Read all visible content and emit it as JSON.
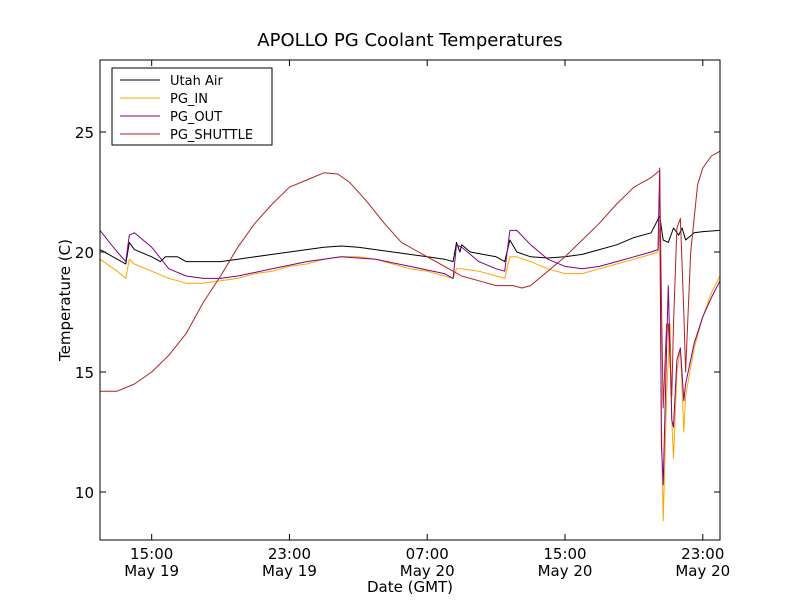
{
  "chart_data": {
    "type": "line",
    "title": "APOLLO PG Coolant Temperatures",
    "xlabel": "Date (GMT)",
    "ylabel": "Temperature (C)",
    "x_unit": "hours since May 19 12:00 GMT",
    "xlim": [
      0,
      36
    ],
    "ylim": [
      8,
      28
    ],
    "yticks": [
      10,
      15,
      20,
      25
    ],
    "ytick_labels": [
      "10",
      "15",
      "20",
      "25"
    ],
    "xticks": [
      {
        "x": 3,
        "time": "15:00",
        "date": "May 19"
      },
      {
        "x": 11,
        "time": "23:00",
        "date": "May 19"
      },
      {
        "x": 19,
        "time": "07:00",
        "date": "May 20"
      },
      {
        "x": 27,
        "time": "15:00",
        "date": "May 20"
      },
      {
        "x": 35,
        "time": "23:00",
        "date": "May 20"
      }
    ],
    "legend_position": "top-left",
    "series": [
      {
        "name": "Utah Air",
        "color": "#000000",
        "points": [
          [
            0,
            20.1
          ],
          [
            1,
            19.7
          ],
          [
            1.5,
            19.5
          ],
          [
            1.7,
            20.4
          ],
          [
            2,
            20.1
          ],
          [
            3,
            19.8
          ],
          [
            3.5,
            19.6
          ],
          [
            3.8,
            19.8
          ],
          [
            4.5,
            19.8
          ],
          [
            5,
            19.6
          ],
          [
            5.5,
            19.6
          ],
          [
            7,
            19.6
          ],
          [
            8,
            19.7
          ],
          [
            10,
            19.9
          ],
          [
            12,
            20.1
          ],
          [
            13,
            20.2
          ],
          [
            14,
            20.25
          ],
          [
            15,
            20.2
          ],
          [
            16,
            20.1
          ],
          [
            17,
            20.0
          ],
          [
            18,
            19.9
          ],
          [
            19,
            19.8
          ],
          [
            20,
            19.7
          ],
          [
            20.5,
            19.6
          ],
          [
            20.7,
            20.4
          ],
          [
            20.9,
            20.0
          ],
          [
            21,
            20.3
          ],
          [
            21.5,
            20.0
          ],
          [
            23,
            19.8
          ],
          [
            23.5,
            19.6
          ],
          [
            23.8,
            20.5
          ],
          [
            24.2,
            20.0
          ],
          [
            25,
            19.8
          ],
          [
            26,
            19.75
          ],
          [
            27,
            19.8
          ],
          [
            28,
            19.9
          ],
          [
            29,
            20.1
          ],
          [
            30,
            20.3
          ],
          [
            31,
            20.6
          ],
          [
            32,
            20.8
          ],
          [
            32.5,
            21.5
          ],
          [
            32.7,
            20.5
          ],
          [
            33.0,
            20.4
          ],
          [
            33.3,
            21.0
          ],
          [
            33.6,
            20.7
          ],
          [
            33.8,
            21.0
          ],
          [
            34,
            20.5
          ],
          [
            34.5,
            20.8
          ],
          [
            35,
            20.85
          ],
          [
            36,
            20.9
          ]
        ]
      },
      {
        "name": "PG_IN",
        "color": "#FFA500",
        "points": [
          [
            0,
            19.7
          ],
          [
            1,
            19.2
          ],
          [
            1.5,
            18.9
          ],
          [
            1.7,
            19.7
          ],
          [
            2,
            19.5
          ],
          [
            3,
            19.2
          ],
          [
            4,
            18.9
          ],
          [
            5,
            18.7
          ],
          [
            6,
            18.7
          ],
          [
            7,
            18.8
          ],
          [
            8,
            18.9
          ],
          [
            9,
            19.1
          ],
          [
            10,
            19.2
          ],
          [
            11,
            19.4
          ],
          [
            12,
            19.5
          ],
          [
            13,
            19.7
          ],
          [
            14,
            19.8
          ],
          [
            15,
            19.8
          ],
          [
            16,
            19.7
          ],
          [
            17,
            19.5
          ],
          [
            18,
            19.3
          ],
          [
            19,
            19.2
          ],
          [
            20,
            19.0
          ],
          [
            20.5,
            18.9
          ],
          [
            20.7,
            19.3
          ],
          [
            21,
            19.3
          ],
          [
            22,
            19.2
          ],
          [
            23,
            19.0
          ],
          [
            23.5,
            18.9
          ],
          [
            23.8,
            19.8
          ],
          [
            24.2,
            19.8
          ],
          [
            25,
            19.6
          ],
          [
            26,
            19.3
          ],
          [
            27,
            19.1
          ],
          [
            28,
            19.1
          ],
          [
            29,
            19.3
          ],
          [
            30,
            19.5
          ],
          [
            31,
            19.7
          ],
          [
            32,
            19.9
          ],
          [
            32.4,
            20.0
          ],
          [
            32.5,
            21.0
          ],
          [
            32.6,
            13.0
          ],
          [
            32.7,
            8.8
          ],
          [
            32.9,
            14.0
          ],
          [
            33.1,
            17.0
          ],
          [
            33.2,
            13.0
          ],
          [
            33.3,
            11.4
          ],
          [
            33.5,
            15.0
          ],
          [
            33.7,
            16.0
          ],
          [
            33.9,
            12.5
          ],
          [
            34.0,
            14.0
          ],
          [
            34.5,
            16.0
          ],
          [
            35,
            17.3
          ],
          [
            35.5,
            18.3
          ],
          [
            36,
            19.0
          ]
        ]
      },
      {
        "name": "PG_OUT",
        "color": "#800080",
        "points": [
          [
            0,
            20.9
          ],
          [
            1,
            20.0
          ],
          [
            1.5,
            19.6
          ],
          [
            1.7,
            20.7
          ],
          [
            2,
            20.8
          ],
          [
            3,
            20.2
          ],
          [
            4,
            19.3
          ],
          [
            5,
            19.0
          ],
          [
            6,
            18.9
          ],
          [
            7,
            18.9
          ],
          [
            8,
            19.0
          ],
          [
            10,
            19.3
          ],
          [
            12,
            19.6
          ],
          [
            14,
            19.8
          ],
          [
            16,
            19.7
          ],
          [
            18,
            19.4
          ],
          [
            20,
            19.1
          ],
          [
            20.5,
            18.9
          ],
          [
            20.7,
            20.3
          ],
          [
            21,
            20.2
          ],
          [
            22,
            19.6
          ],
          [
            23,
            19.3
          ],
          [
            23.5,
            19.2
          ],
          [
            23.8,
            20.9
          ],
          [
            24.2,
            20.9
          ],
          [
            25,
            20.3
          ],
          [
            26,
            19.7
          ],
          [
            27,
            19.4
          ],
          [
            28,
            19.3
          ],
          [
            29,
            19.4
          ],
          [
            30,
            19.6
          ],
          [
            31,
            19.8
          ],
          [
            32,
            20.0
          ],
          [
            32.4,
            20.1
          ],
          [
            32.5,
            23.5
          ],
          [
            32.6,
            12.0
          ],
          [
            32.7,
            10.3
          ],
          [
            32.9,
            16.0
          ],
          [
            33.0,
            18.6
          ],
          [
            33.2,
            13.0
          ],
          [
            33.3,
            12.7
          ],
          [
            33.5,
            15.5
          ],
          [
            33.7,
            16.0
          ],
          [
            33.9,
            13.8
          ],
          [
            34.0,
            14.5
          ],
          [
            34.5,
            16.2
          ],
          [
            35,
            17.3
          ],
          [
            35.5,
            18.1
          ],
          [
            36,
            18.8
          ]
        ]
      },
      {
        "name": "PG_SHUTTLE",
        "color": "#B22222",
        "points": [
          [
            0,
            14.2
          ],
          [
            1,
            14.2
          ],
          [
            2,
            14.5
          ],
          [
            3,
            15.0
          ],
          [
            4,
            15.7
          ],
          [
            5,
            16.6
          ],
          [
            6,
            17.9
          ],
          [
            7,
            19.0
          ],
          [
            8,
            20.2
          ],
          [
            9,
            21.2
          ],
          [
            10,
            22.0
          ],
          [
            11,
            22.7
          ],
          [
            12,
            23.0
          ],
          [
            13,
            23.3
          ],
          [
            13.8,
            23.25
          ],
          [
            14.5,
            22.9
          ],
          [
            15.5,
            22.1
          ],
          [
            16.5,
            21.2
          ],
          [
            17.5,
            20.4
          ],
          [
            18.5,
            20.0
          ],
          [
            19.5,
            19.6
          ],
          [
            20.5,
            19.2
          ],
          [
            21,
            19.0
          ],
          [
            22,
            18.8
          ],
          [
            23,
            18.6
          ],
          [
            24,
            18.6
          ],
          [
            24.5,
            18.5
          ],
          [
            25,
            18.6
          ],
          [
            26,
            19.2
          ],
          [
            27,
            19.8
          ],
          [
            28,
            20.5
          ],
          [
            29,
            21.2
          ],
          [
            30,
            22.0
          ],
          [
            31,
            22.7
          ],
          [
            32,
            23.1
          ],
          [
            32.5,
            23.4
          ],
          [
            32.6,
            18.0
          ],
          [
            32.7,
            13.5
          ],
          [
            32.9,
            17.0
          ],
          [
            33.0,
            17.0
          ],
          [
            33.2,
            14.0
          ],
          [
            33.3,
            17.0
          ],
          [
            33.5,
            21.0
          ],
          [
            33.7,
            21.4
          ],
          [
            33.9,
            17.5
          ],
          [
            34.0,
            15.0
          ],
          [
            34.3,
            20.0
          ],
          [
            34.7,
            22.8
          ],
          [
            35,
            23.5
          ],
          [
            35.5,
            24.0
          ],
          [
            36,
            24.2
          ]
        ]
      }
    ]
  }
}
